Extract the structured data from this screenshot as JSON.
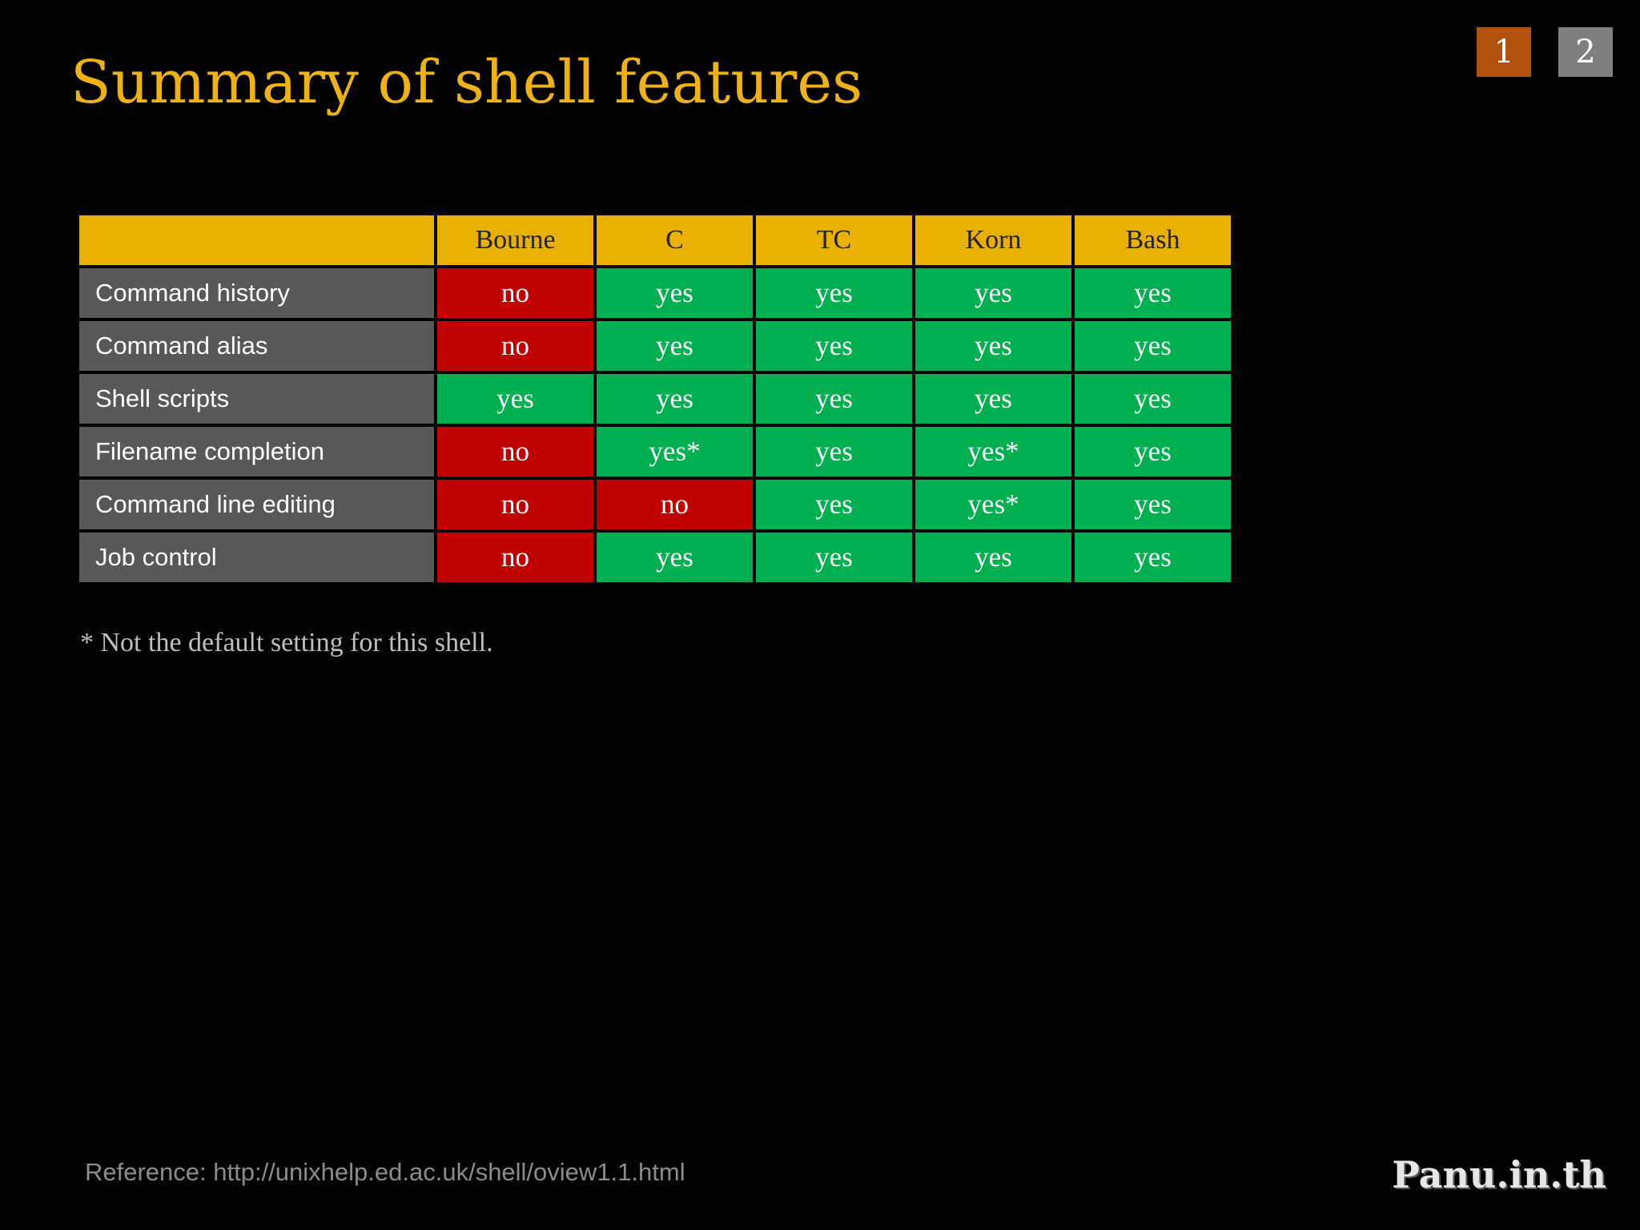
{
  "slide": {
    "title": "Summary of shell features",
    "footnote": "* Not the default setting for this shell.",
    "reference": "Reference: http://unixhelp.ed.ac.uk/shell/oview1.1.html",
    "logo": "Panu.in.th"
  },
  "pagination": {
    "pages": [
      "1",
      "2"
    ],
    "current": "1"
  },
  "table": {
    "corner": "",
    "columns": [
      "Bourne",
      "C",
      "TC",
      "Korn",
      "Bash"
    ],
    "rows": [
      {
        "feature": "Command history",
        "values": [
          "no",
          "yes",
          "yes",
          "yes",
          "yes"
        ]
      },
      {
        "feature": "Command alias",
        "values": [
          "no",
          "yes",
          "yes",
          "yes",
          "yes"
        ]
      },
      {
        "feature": "Shell scripts",
        "values": [
          "yes",
          "yes",
          "yes",
          "yes",
          "yes"
        ]
      },
      {
        "feature": "Filename completion",
        "values": [
          "no",
          "yes*",
          "yes",
          "yes*",
          "yes"
        ]
      },
      {
        "feature": "Command line editing",
        "values": [
          "no",
          "no",
          "yes",
          "yes*",
          "yes"
        ]
      },
      {
        "feature": "Job control",
        "values": [
          "no",
          "yes",
          "yes",
          "yes",
          "yes"
        ]
      }
    ]
  },
  "colors": {
    "background": "#030203",
    "title": "#eeb116",
    "header": "#e8b000",
    "feature_cell": "#58575a",
    "yes": "#00b050",
    "no": "#c00000",
    "page_active": "#b3520c",
    "page_inactive": "#7f7f7f"
  }
}
